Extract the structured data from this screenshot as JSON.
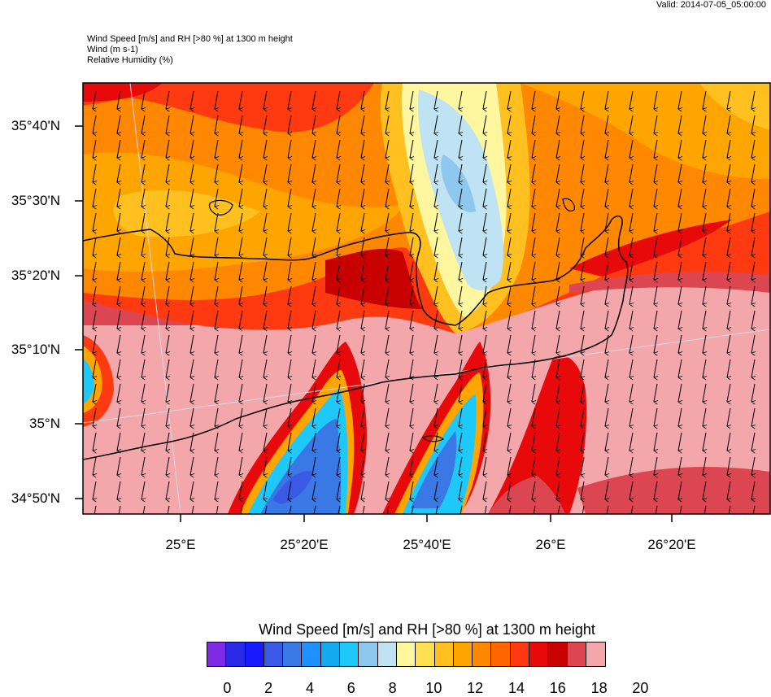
{
  "valid_text": "Valid: 2014-07-05_05:00:00",
  "titles": {
    "line1": "Wind Speed [m/s] and RH [>80 %] at 1300 m height",
    "line2": "Wind   (m s-1)",
    "line3": "Relative Humidity   (%)"
  },
  "lat_labels": [
    "35°40'N",
    "35°30'N",
    "35°20'N",
    "35°10'N",
    "35°N",
    "34°50'N"
  ],
  "lon_labels": [
    "25°E",
    "25°20'E",
    "25°40'E",
    "26°E",
    "26°20'E"
  ],
  "legend": {
    "title": "Wind Speed [m/s] and RH [>80 %] at 1300 m height",
    "colors": [
      "#7f2ae6",
      "#2a2ae6",
      "#1a1aff",
      "#3a5ae6",
      "#3a78e6",
      "#1e90ff",
      "#14aaf0",
      "#1ec8f8",
      "#8fc8ee",
      "#bfe3f2",
      "#fff7a0",
      "#ffe050",
      "#ffc020",
      "#ffa500",
      "#ff8800",
      "#ff6600",
      "#ff3a10",
      "#e80a0a",
      "#c80000",
      "#dc4650",
      "#f4a7aa"
    ],
    "ticks": [
      "0",
      "2",
      "4",
      "6",
      "8",
      "10",
      "12",
      "14",
      "16",
      "18",
      "20"
    ]
  }
}
